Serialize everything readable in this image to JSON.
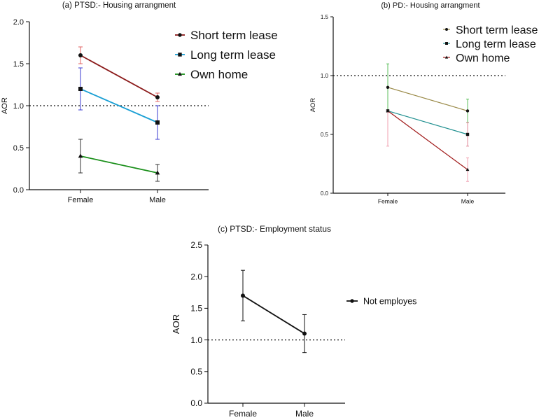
{
  "chart_data": [
    {
      "id": "a",
      "type": "line",
      "title": "(a) PTSD:- Housing arrangment",
      "xlabel": "",
      "ylabel": "AOR",
      "categories": [
        "Female",
        "Male"
      ],
      "ylim": [
        0,
        2.0
      ],
      "yticks": [
        0,
        0.5,
        1.0,
        1.5,
        2.0
      ],
      "ytick_labels": [
        "0.0",
        "0.5",
        "1.0",
        "1.5",
        "2.0"
      ],
      "reference_line": 1.0,
      "legend_position": "top-right",
      "series": [
        {
          "name": "Short term lease",
          "values": [
            1.6,
            1.1
          ],
          "err_low": [
            1.5,
            1.05
          ],
          "err_high": [
            1.7,
            1.15
          ],
          "color": "#8b1a1a",
          "err_color": "#e06060",
          "marker": "circle"
        },
        {
          "name": "Long term lease",
          "values": [
            1.2,
            0.8
          ],
          "err_low": [
            0.95,
            0.6
          ],
          "err_high": [
            1.45,
            1.0
          ],
          "color": "#1a9fd4",
          "err_color": "#3a3ad0",
          "marker": "square"
        },
        {
          "name": "Own home",
          "values": [
            0.4,
            0.2
          ],
          "err_low": [
            0.2,
            0.1
          ],
          "err_high": [
            0.6,
            0.3
          ],
          "color": "#1a8f1a",
          "err_color": "#333333",
          "marker": "triangle"
        }
      ]
    },
    {
      "id": "b",
      "type": "line",
      "title": "(b) PD:- Housing arrangment",
      "xlabel": "",
      "ylabel": "AOR",
      "categories": [
        "Female",
        "Male"
      ],
      "ylim": [
        0,
        1.5
      ],
      "yticks": [
        0,
        0.5,
        1.0,
        1.5
      ],
      "ytick_labels": [
        "0.0",
        "0.5",
        "1.0",
        "1.5"
      ],
      "reference_line": 1.0,
      "legend_position": "top-right",
      "series": [
        {
          "name": "Short term lease",
          "values": [
            0.9,
            0.7
          ],
          "err_low": [
            0.7,
            0.6
          ],
          "err_high": [
            1.1,
            0.8
          ],
          "color": "#9a8a48",
          "err_color": "#5cbf5c",
          "marker": "circle"
        },
        {
          "name": "Long term lease",
          "values": [
            0.7,
            0.5
          ],
          "err_low": [
            0.7,
            0.4
          ],
          "err_high": [
            0.7,
            0.6
          ],
          "color": "#1f8f8f",
          "err_color": "#e08a9a",
          "marker": "square"
        },
        {
          "name": "Own home",
          "values": [
            0.7,
            0.2
          ],
          "err_low": [
            0.4,
            0.1
          ],
          "err_high": [
            0.7,
            0.3
          ],
          "color": "#a01a1a",
          "err_color": "#f0a0b0",
          "marker": "triangle"
        }
      ]
    },
    {
      "id": "c",
      "type": "line",
      "title": "(c) PTSD:- Employment status",
      "xlabel": "",
      "ylabel": "AOR",
      "categories": [
        "Female",
        "Male"
      ],
      "ylim": [
        0,
        2.5
      ],
      "yticks": [
        0,
        0.5,
        1.0,
        1.5,
        2.0,
        2.5
      ],
      "ytick_labels": [
        "0.0",
        "0.5",
        "1.0",
        "1.5",
        "2.0",
        "2.5"
      ],
      "reference_line": 1.0,
      "legend_position": "right",
      "series": [
        {
          "name": "Not employes",
          "values": [
            1.7,
            1.1
          ],
          "err_low": [
            1.3,
            0.8
          ],
          "err_high": [
            2.1,
            1.4
          ],
          "color": "#111111",
          "err_color": "#111111",
          "marker": "circle"
        }
      ]
    }
  ]
}
